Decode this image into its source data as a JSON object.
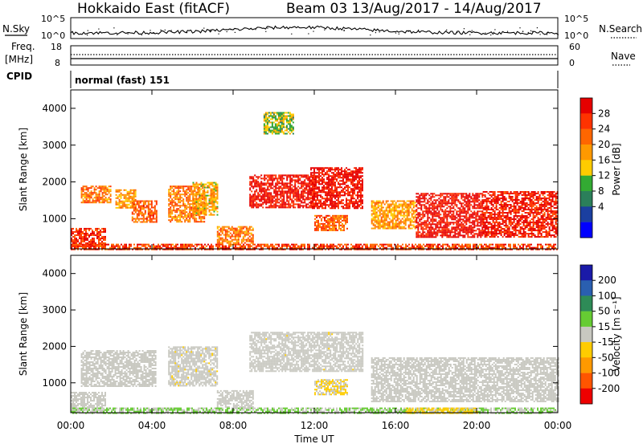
{
  "header": {
    "station": "Hokkaido East (fitACF)",
    "beam_info": "Beam 03  13/Aug/2017 - 14/Aug/2017"
  },
  "strip_panels": {
    "nsky": {
      "label": "N.Sky",
      "right_label": "N.Search",
      "ytick_top": "10^5",
      "ytick_bottom": "10^0"
    },
    "freq": {
      "label_line1": "Freq.",
      "label_line2": "[MHz]",
      "ytick_top": "18",
      "ytick_bottom": "8",
      "right_tick_top": "60",
      "right_tick_bottom": "0",
      "right_label": "Nave"
    },
    "cpid": {
      "label": "CPID",
      "program": "normal (fast) 151"
    }
  },
  "power_colorbar": {
    "label": "Power [dB]",
    "ticks": [
      "28",
      "24",
      "20",
      "16",
      "12",
      "8",
      "4"
    ],
    "colors": [
      "#e60000",
      "#ff3300",
      "#ff6600",
      "#ff9900",
      "#ffcc00",
      "#33aa33",
      "#2b7f5a",
      "#1b3fa0",
      "#0000ff"
    ]
  },
  "velocity_colorbar": {
    "label": "Velocity [m s⁻¹]",
    "ticks": [
      "200",
      "100",
      "50",
      "15",
      "-15",
      "-50",
      "-100",
      "-200"
    ],
    "colors": [
      "#1a1aa8",
      "#2a5fb0",
      "#2e8b57",
      "#66cc33",
      "#c8c8c0",
      "#ffcc00",
      "#ff9900",
      "#ff5500",
      "#ee0000"
    ]
  },
  "axes": {
    "ylabel": "Slant Range [km]",
    "xlabel": "Time UT",
    "xticks": [
      "00:00",
      "04:00",
      "08:00",
      "12:00",
      "16:00",
      "20:00",
      "00:00"
    ],
    "yticks": [
      "1000",
      "2000",
      "3000",
      "4000"
    ]
  },
  "chart_data": [
    {
      "type": "heatmap",
      "title": "Power [dB]",
      "xlabel": "Time UT",
      "ylabel": "Slant Range [km]",
      "xlim": [
        0,
        24
      ],
      "ylim": [
        180,
        4500
      ],
      "clim": [
        0,
        32
      ],
      "regions": [
        {
          "t0": 0.0,
          "t1": 1.7,
          "r0": 250,
          "r1": 750,
          "value": 28
        },
        {
          "t0": 0.5,
          "t1": 2.0,
          "r0": 1450,
          "r1": 1900,
          "value": 22
        },
        {
          "t0": 2.2,
          "t1": 3.2,
          "r0": 1300,
          "r1": 1800,
          "value": 20
        },
        {
          "t0": 3.0,
          "t1": 4.2,
          "r0": 900,
          "r1": 1500,
          "value": 24
        },
        {
          "t0": 4.8,
          "t1": 6.6,
          "r0": 900,
          "r1": 1900,
          "value": 22
        },
        {
          "t0": 6.0,
          "t1": 7.2,
          "r0": 1100,
          "r1": 2000,
          "value": 18
        },
        {
          "t0": 7.2,
          "t1": 9.0,
          "r0": 350,
          "r1": 800,
          "value": 22
        },
        {
          "t0": 8.8,
          "t1": 12.0,
          "r0": 1300,
          "r1": 2200,
          "value": 30
        },
        {
          "t0": 11.8,
          "t1": 14.4,
          "r0": 1300,
          "r1": 2400,
          "value": 30
        },
        {
          "t0": 12.0,
          "t1": 13.6,
          "r0": 700,
          "r1": 1100,
          "value": 24
        },
        {
          "t0": 14.8,
          "t1": 17.0,
          "r0": 750,
          "r1": 1500,
          "value": 20
        },
        {
          "t0": 17.0,
          "t1": 20.3,
          "r0": 500,
          "r1": 1700,
          "value": 30
        },
        {
          "t0": 20.3,
          "t1": 24.0,
          "r0": 500,
          "r1": 1750,
          "value": 29
        },
        {
          "t0": 0.0,
          "t1": 24.0,
          "r0": 180,
          "r1": 320,
          "value": 26
        },
        {
          "t0": 9.5,
          "t1": 11.0,
          "r0": 3300,
          "r1": 3900,
          "value": 14
        }
      ]
    },
    {
      "type": "heatmap",
      "title": "Velocity [m s⁻¹]",
      "xlabel": "Time UT",
      "ylabel": "Slant Range [km]",
      "xlim": [
        0,
        24
      ],
      "ylim": [
        180,
        4500
      ],
      "clim": [
        -250,
        250
      ],
      "regions": [
        {
          "t0": 0.0,
          "t1": 1.7,
          "r0": 250,
          "r1": 750,
          "value": -5
        },
        {
          "t0": 0.5,
          "t1": 4.2,
          "r0": 900,
          "r1": 1900,
          "value": -5
        },
        {
          "t0": 4.8,
          "t1": 7.2,
          "r0": 900,
          "r1": 2000,
          "value": -10
        },
        {
          "t0": 7.2,
          "t1": 9.0,
          "r0": 350,
          "r1": 800,
          "value": 0
        },
        {
          "t0": 8.8,
          "t1": 14.4,
          "r0": 1300,
          "r1": 2400,
          "value": -8
        },
        {
          "t0": 12.0,
          "t1": 13.6,
          "r0": 700,
          "r1": 1100,
          "value": -30
        },
        {
          "t0": 14.8,
          "t1": 24.0,
          "r0": 500,
          "r1": 1700,
          "value": -5
        },
        {
          "t0": 0.0,
          "t1": 24.0,
          "r0": 180,
          "r1": 320,
          "value": 30
        },
        {
          "t0": 16.5,
          "t1": 20.0,
          "r0": 180,
          "r1": 320,
          "value": -40
        }
      ]
    }
  ]
}
